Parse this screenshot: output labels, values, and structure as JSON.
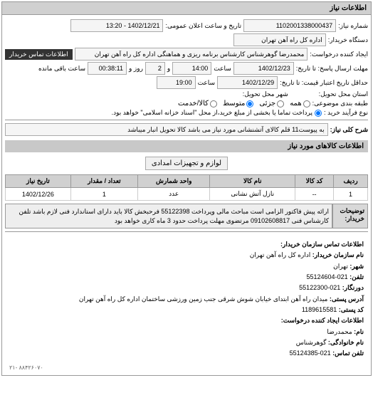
{
  "panel1_title": "اطلاعات نیاز",
  "request_number_label": "شماره نیاز:",
  "request_number": "1102001338000437",
  "public_datetime_label": "تاریخ و ساعت اعلان عمومی:",
  "public_datetime": "1402/12/21 - 13:20",
  "buyer_org_label": "دستگاه خریدار:",
  "buyer_org": "اداره کل راه آهن تهران",
  "requester_label": "ایجاد کننده درخواست:",
  "requester": "محمدرضا گوهرشناس کارشناس برنامه ریزی و هماهنگی اداره کل راه آهن تهران",
  "buyer_contact_btn": "اطلاعات تماس خریدار",
  "deadline_reply_label": "مهلت ارسال پاسخ: تا تاریخ:",
  "deadline_reply_date": "1402/12/23",
  "time_label": "ساعت",
  "deadline_reply_time": "14:00",
  "and_label": "و",
  "days_remaining": "2",
  "days_label": "روز و",
  "time_remaining": "00:38:11",
  "remaining_label": "ساعت باقی مانده",
  "validity_label": "حداقل تاریخ اعتبار قیمت: تا تاریخ:",
  "validity_date": "1402/12/29",
  "validity_time": "19:00",
  "delivery_state_label": "استان محل تحویل:",
  "delivery_city_label": "شهر محل تحویل:",
  "subject_group_label": "طبقه بندی موضوعی:",
  "radio_all": "همه",
  "radio_partial": "جزئی",
  "radio_medium": "متوسط",
  "radio_goods_service": "کالا/خدمت",
  "purchase_type_label": "نوع فرآیند خرید :",
  "purchase_type_text": "پرداخت تماما یا بخشی از مبلغ خرید،از محل \"اسناد خزانه اسلامی\" خواهد بود.",
  "need_desc_label": "شرح کلی نیاز:",
  "need_desc": "به پیوست11 قلم کالای آتشنشانی مورد نیاز می باشد کالا تحویل انبار میباشد",
  "goods_info_header": "اطلاعات کالاهای مورد نیاز",
  "goods_category": "لوازم و تجهیزات امدادی",
  "table": {
    "columns": [
      "ردیف",
      "کد کالا",
      "نام کالا",
      "واحد شمارش",
      "تعداد / مقدار",
      "تاریخ نیاز"
    ],
    "rows": [
      [
        "1",
        "--",
        "نازل آتش نشانی",
        "عدد",
        "1",
        "1402/12/26"
      ]
    ]
  },
  "buyer_desc_label": "توضیحات خریدار:",
  "buyer_desc": "ارائه پیش فاکتور الزامی است مباحث مالی وپرداخت 55122398 فرحبخش کالا باید دارای استاندارد فنی لازم باشد تلفن کارشناس فنی 09102608817 مرتضوی مهلت پرداخت حدود 3 ماه کاری خواهد بود",
  "contact_header": "اطلاعات تماس سازمان خریدار:",
  "org_name_label": "نام سازمان خریدار:",
  "org_name": "اداره کل راه آهن تهران",
  "city_label": "شهر:",
  "city": "تهران",
  "phone_label": "تلفن:",
  "phone": "021-55124604",
  "fax_label": "دورنگار:",
  "fax": "021-55122300",
  "address_label": "آدرس پستی:",
  "address": "میدان راه آهن ابتدای خیابان شوش شرقی جنب زمین ورزشی ساختمان اداره کل راه آهن تهران",
  "postal_label": "کد پستی:",
  "postal": "1189615581",
  "request_creator_header": "اطلاعات ایجاد کننده درخواست:",
  "name_label": "نام:",
  "name": "محمدرضا",
  "surname_label": "نام خانوادگی:",
  "surname": "گوهرشناس",
  "contact_phone_label": "تلفن تماس:",
  "contact_phone": "021-55124385",
  "footer": "۲۱- ۸۸۴۲۶۰۷۰"
}
